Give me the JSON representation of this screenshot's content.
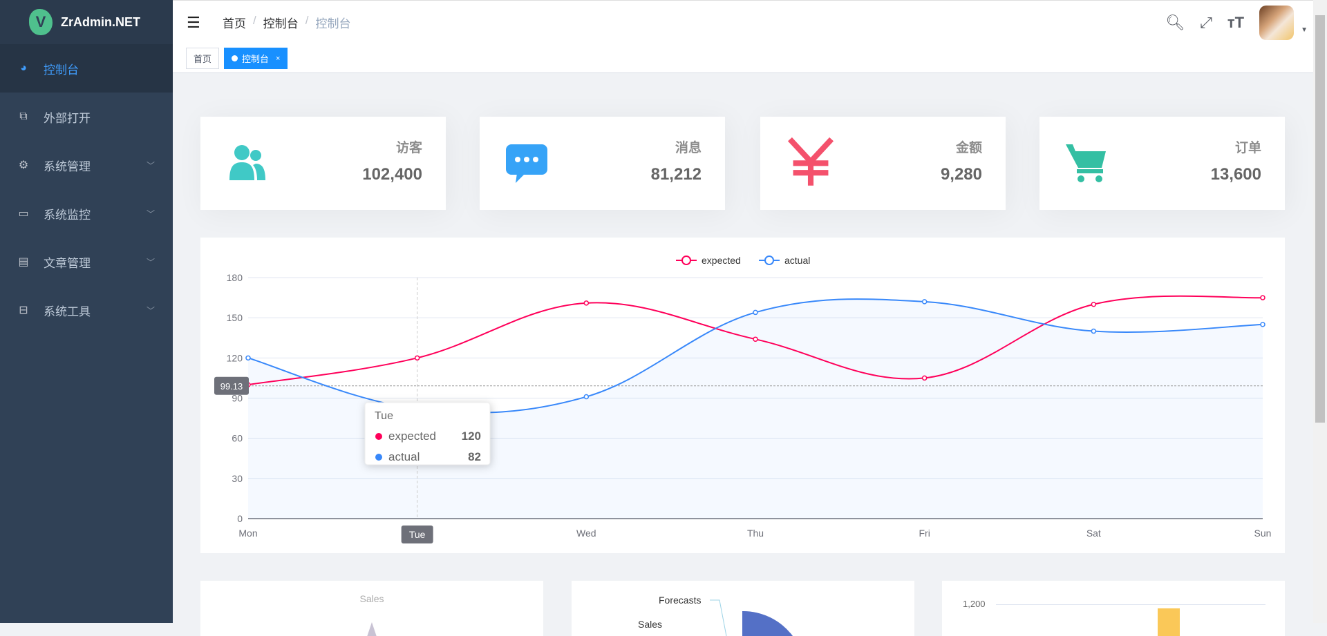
{
  "app": {
    "name": "ZrAdmin.NET",
    "logo_letter": "V"
  },
  "sidebar": {
    "items": [
      {
        "label": "控制台",
        "icon": "dashboard-icon",
        "active": true
      },
      {
        "label": "外部打开",
        "icon": "external-link-icon"
      },
      {
        "label": "系统管理",
        "icon": "gear-icon",
        "expandable": true
      },
      {
        "label": "系统监控",
        "icon": "monitor-icon",
        "expandable": true
      },
      {
        "label": "文章管理",
        "icon": "document-icon",
        "expandable": true
      },
      {
        "label": "系统工具",
        "icon": "toolbox-icon",
        "expandable": true
      }
    ]
  },
  "header": {
    "breadcrumb": [
      "首页",
      "控制台",
      "控制台"
    ],
    "separator": "/"
  },
  "tags": [
    {
      "label": "首页"
    },
    {
      "label": "控制台",
      "active": true,
      "close": "×"
    }
  ],
  "cards": [
    {
      "label": "访客",
      "value": "102,400",
      "icon": "peoples-icon",
      "color": "#40c9c6"
    },
    {
      "label": "消息",
      "value": "81,212",
      "icon": "message-icon",
      "color": "#36a3f7"
    },
    {
      "label": "金额",
      "value": "9,280",
      "icon": "money-icon",
      "color": "#f4516c"
    },
    {
      "label": "订单",
      "value": "13,600",
      "icon": "shopping-cart-icon",
      "color": "#34bfa3"
    }
  ],
  "chart_data": {
    "type": "line",
    "categories": [
      "Mon",
      "Tue",
      "Wed",
      "Thu",
      "Fri",
      "Sat",
      "Sun"
    ],
    "series": [
      {
        "name": "expected",
        "values": [
          100,
          120,
          161,
          134,
          105,
          160,
          165
        ],
        "color": "#ff005a"
      },
      {
        "name": "actual",
        "values": [
          120,
          82,
          91,
          154,
          162,
          140,
          145
        ],
        "color": "#3888fa",
        "area": true
      }
    ],
    "ylim": [
      0,
      180
    ],
    "yticks": [
      0,
      30,
      60,
      90,
      120,
      150,
      180
    ],
    "legend": "top-center",
    "grid": true,
    "pointer": {
      "y_label": "99.13",
      "x_label": "Tue"
    },
    "tooltip": {
      "title": "Tue",
      "rows": [
        {
          "name": "expected",
          "value": "120"
        },
        {
          "name": "actual",
          "value": "82"
        }
      ]
    }
  },
  "bottom": {
    "radar_title": "Sales",
    "pie_labels": [
      "Forecasts",
      "Sales"
    ],
    "bar_tick": "1,200"
  }
}
